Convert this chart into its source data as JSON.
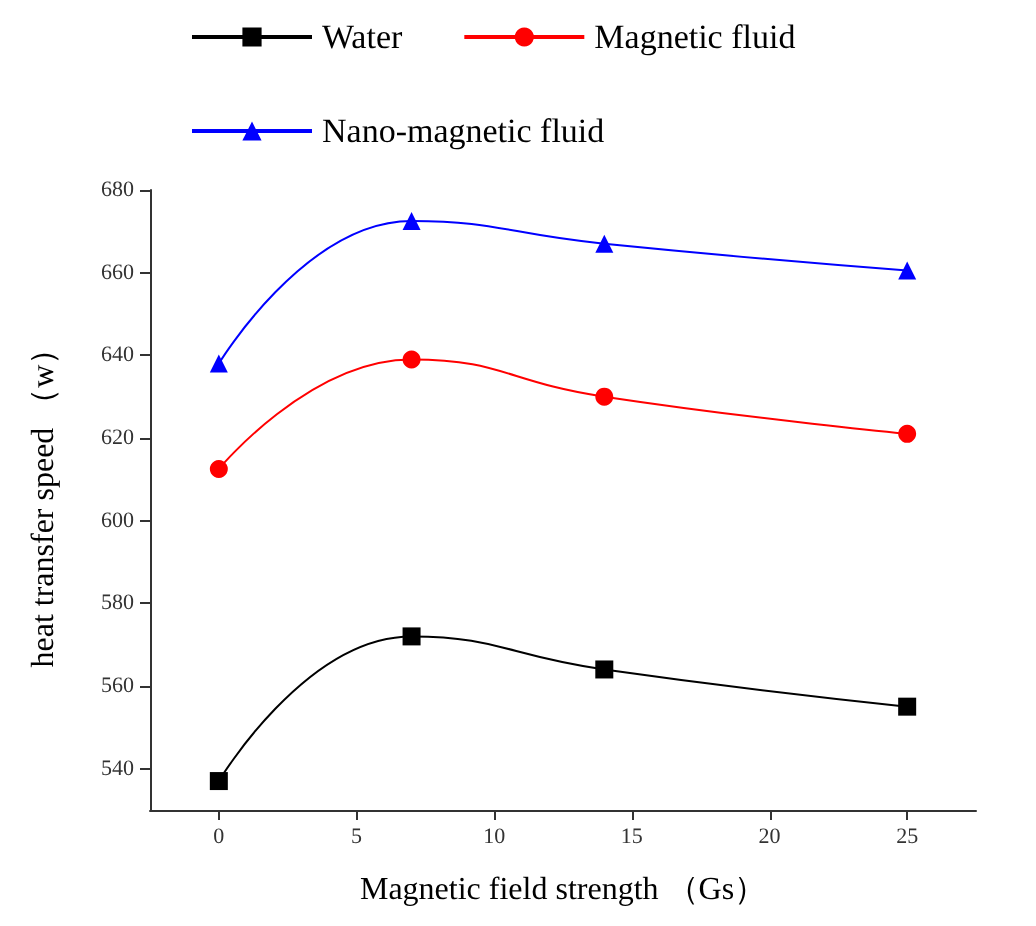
{
  "chart_data": {
    "type": "line",
    "xlabel": "Magnetic field strength （Gs）",
    "ylabel": "heat transfer speed （w）",
    "x": [
      0,
      7,
      14,
      25
    ],
    "series": [
      {
        "name": "Water",
        "color": "#000000",
        "marker": "square",
        "values": [
          537,
          572,
          564,
          555
        ]
      },
      {
        "name": "Magnetic fluid",
        "color": "#ff0000",
        "marker": "circle",
        "values": [
          612.5,
          639,
          630,
          621
        ]
      },
      {
        "name": "Nano-magnetic fluid",
        "color": "#0000ff",
        "marker": "triangle",
        "values": [
          638,
          672.5,
          667,
          660.5
        ]
      }
    ],
    "xlim": [
      -2.5,
      27.5
    ],
    "xticks": [
      0,
      5,
      10,
      15,
      20,
      25
    ],
    "ylim": [
      530,
      680
    ],
    "yticks": [
      540,
      560,
      580,
      600,
      620,
      640,
      660,
      680
    ],
    "grid": false,
    "legend": "top"
  }
}
